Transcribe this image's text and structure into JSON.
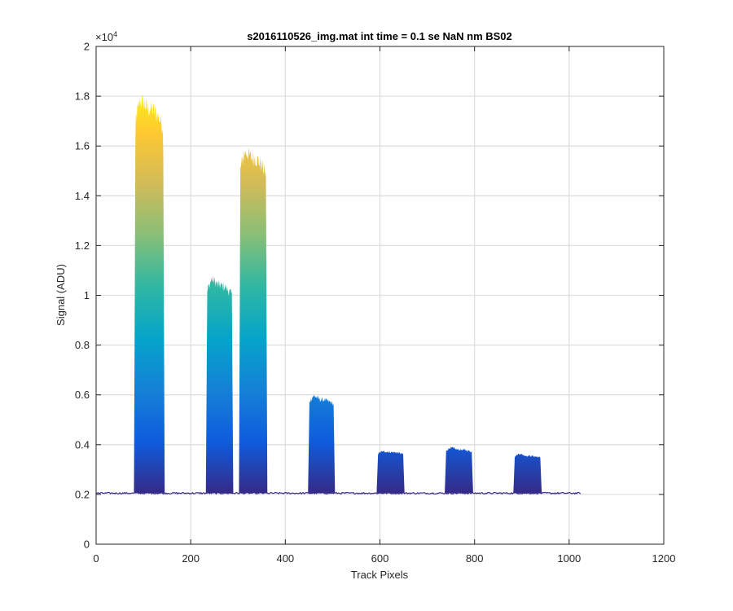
{
  "chart_data": {
    "type": "area",
    "title": "s2016110526_img.mat int time = 0.1 se  NaN nm BS02",
    "xlabel": "Track Pixels",
    "ylabel": "Signal (ADU)",
    "exponent_label": "×10",
    "exponent_power": "4",
    "xlim": [
      0,
      1200
    ],
    "ylim": [
      0,
      20000
    ],
    "xticks": [
      0,
      200,
      400,
      600,
      800,
      1000,
      1200
    ],
    "xtick_labels": [
      "0",
      "200",
      "400",
      "600",
      "800",
      "1000",
      "1200"
    ],
    "yticks": [
      0,
      2000,
      4000,
      6000,
      8000,
      10000,
      12000,
      14000,
      16000,
      18000,
      20000
    ],
    "ytick_labels": [
      "0",
      "0.2",
      "0.4",
      "0.6",
      "0.8",
      "1",
      "1.2",
      "1.4",
      "1.6",
      "1.8",
      "2"
    ],
    "grid": true,
    "colormap": [
      "#352a87",
      "#0f5cdd",
      "#1481d6",
      "#06a4ca",
      "#2eb7a4",
      "#87bf77",
      "#d1bb59",
      "#fec832",
      "#f9fb0e"
    ],
    "baseline": 2050,
    "baseline_range": [
      0,
      1024
    ],
    "bands": [
      {
        "start": 80,
        "end": 145,
        "peak": 18600,
        "typical": 17500
      },
      {
        "start": 232,
        "end": 290,
        "peak": 11100,
        "typical": 10400
      },
      {
        "start": 302,
        "end": 362,
        "peak": 16400,
        "typical": 15500
      },
      {
        "start": 448,
        "end": 505,
        "peak": 6200,
        "typical": 5800
      },
      {
        "start": 593,
        "end": 652,
        "peak": 3800,
        "typical": 3700
      },
      {
        "start": 737,
        "end": 797,
        "peak": 4000,
        "typical": 3800
      },
      {
        "start": 882,
        "end": 942,
        "peak": 3750,
        "typical": 3550
      }
    ]
  }
}
